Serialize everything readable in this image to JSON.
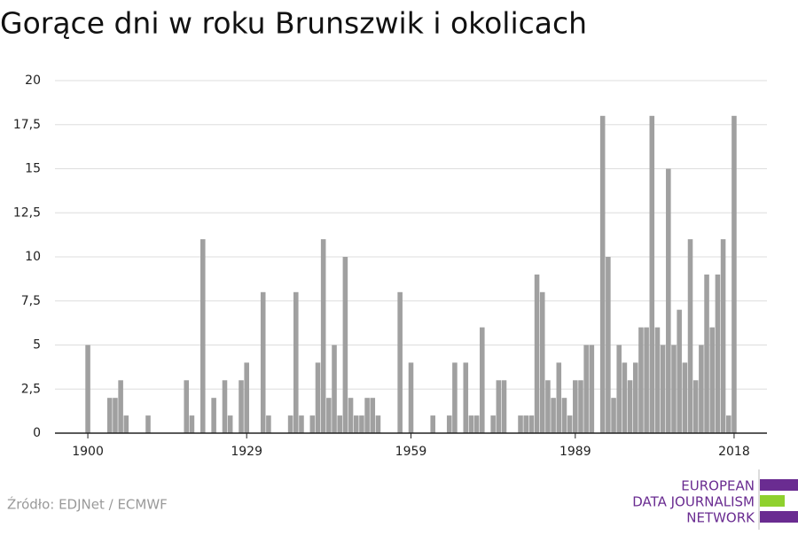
{
  "chart_data": {
    "type": "bar",
    "title": "Gorące dni w roku Brunszwik i okolicach",
    "source": "Źródło: EDJNet / ECMWF",
    "color": "#a0a0a0",
    "grid": true,
    "x": [
      1900,
      1904,
      1905,
      1906,
      1907,
      1911,
      1918,
      1919,
      1921,
      1923,
      1925,
      1926,
      1928,
      1929,
      1932,
      1933,
      1937,
      1938,
      1939,
      1941,
      1942,
      1943,
      1944,
      1945,
      1946,
      1947,
      1948,
      1949,
      1950,
      1951,
      1952,
      1953,
      1957,
      1959,
      1963,
      1966,
      1967,
      1969,
      1970,
      1971,
      1972,
      1974,
      1975,
      1976,
      1979,
      1980,
      1981,
      1982,
      1983,
      1984,
      1985,
      1986,
      1987,
      1988,
      1989,
      1990,
      1991,
      1992,
      1994,
      1995,
      1996,
      1997,
      1998,
      1999,
      2000,
      2001,
      2002,
      2003,
      2004,
      2005,
      2006,
      2007,
      2008,
      2009,
      2010,
      2011,
      2012,
      2013,
      2014,
      2015,
      2016,
      2017,
      2018
    ],
    "values": [
      5,
      2,
      2,
      3,
      1,
      1,
      3,
      1,
      11,
      2,
      3,
      1,
      3,
      4,
      8,
      1,
      1,
      8,
      1,
      1,
      4,
      11,
      2,
      5,
      1,
      10,
      2,
      1,
      1,
      2,
      2,
      1,
      8,
      4,
      1,
      1,
      4,
      4,
      1,
      1,
      6,
      1,
      3,
      3,
      1,
      1,
      1,
      9,
      8,
      3,
      2,
      4,
      2,
      1,
      3,
      3,
      5,
      5,
      18,
      10,
      2,
      5,
      4,
      3,
      4,
      6,
      6,
      18,
      6,
      5,
      15,
      5,
      7,
      4,
      11,
      3,
      5,
      9,
      6,
      9,
      11,
      1,
      18
    ],
    "xlim": [
      1894,
      2024
    ],
    "xticks": [
      1900,
      1929,
      1959,
      1989,
      2018
    ],
    "ylim": [
      0,
      20
    ],
    "yticks": [
      0,
      {
        "value": 2.5,
        "label": "2,5"
      },
      5,
      {
        "value": 7.5,
        "label": "7,5"
      },
      10,
      {
        "value": 12.5,
        "label": "12,5"
      },
      15,
      {
        "value": 17.5,
        "label": "17,5"
      },
      20
    ]
  },
  "logo": {
    "lines": [
      "EUROPEAN",
      "DATA JOURNALISM",
      "NETWORK"
    ]
  }
}
